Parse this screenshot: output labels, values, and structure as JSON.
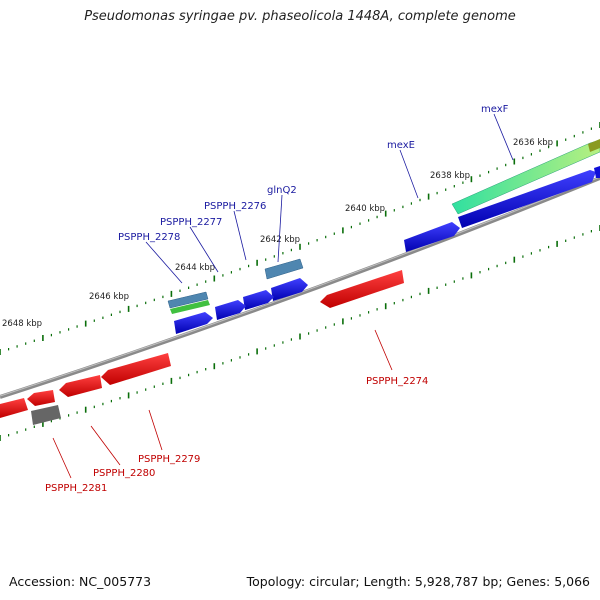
{
  "title": "Pseudomonas syringae pv. phaseolicola 1448A, complete genome",
  "footer": {
    "accession": "Accession: NC_005773",
    "summary": "Topology: circular; Length: 5,928,787 bp; Genes: 5,066"
  },
  "colors": {
    "backbone": "#8a8a8a",
    "tick_major": "#0a6e0a",
    "tick_minor": "#0a6e0a",
    "forward_cds": "#1010d8",
    "reverse_cds": "#e01010",
    "trna": "#4f86b0",
    "rrna": "#40c040",
    "pseudogene": "#666666",
    "label_forward": "#1a1aa0",
    "label_reverse": "#c00000",
    "mexF_gradient_start": "#30e0a0",
    "mexF_gradient_end": "#b8f080"
  },
  "scale_ticks": [
    {
      "label": "2636 kbp"
    },
    {
      "label": "2638 kbp"
    },
    {
      "label": "2640 kbp"
    },
    {
      "label": "2642 kbp"
    },
    {
      "label": "2644 kbp"
    },
    {
      "label": "2646 kbp"
    },
    {
      "label": "2648 kbp"
    }
  ],
  "gene_labels": [
    {
      "name": "mexF",
      "strand": "forward"
    },
    {
      "name": "mexE",
      "strand": "forward"
    },
    {
      "name": "glnQ2",
      "strand": "forward"
    },
    {
      "name": "PSPPH_2276",
      "strand": "forward"
    },
    {
      "name": "PSPPH_2277",
      "strand": "forward"
    },
    {
      "name": "PSPPH_2278",
      "strand": "forward"
    },
    {
      "name": "PSPPH_2274",
      "strand": "reverse"
    },
    {
      "name": "PSPPH_2279",
      "strand": "reverse"
    },
    {
      "name": "PSPPH_2280",
      "strand": "reverse"
    },
    {
      "name": "PSPPH_2281",
      "strand": "reverse"
    }
  ]
}
